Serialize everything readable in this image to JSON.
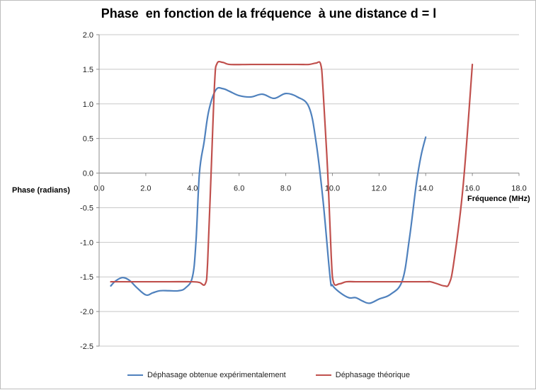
{
  "chart_data": {
    "type": "line",
    "title": "Phase  en fonction de la fréquence  à une distance d = l",
    "xlabel": "Fréquence (MHz)",
    "ylabel": "Phase (radians)",
    "xlim": [
      0,
      18
    ],
    "ylim": [
      -2.5,
      2.0
    ],
    "x_ticks": [
      "0.0",
      "2.0",
      "4.0",
      "6.0",
      "8.0",
      "10.0",
      "12.0",
      "14.0",
      "16.0",
      "18.0"
    ],
    "y_ticks": [
      "2.0",
      "1.5",
      "1.0",
      "0.5",
      "0.0",
      "-0.5",
      "-1.0",
      "-1.5",
      "-2.0",
      "-2.5"
    ],
    "grid": "horizontal",
    "legend_position": "bottom",
    "series": [
      {
        "name": "Déphasage obtenue expérimentalement",
        "color": "#4f81bd",
        "points": [
          [
            0.5,
            -1.63
          ],
          [
            0.7,
            -1.56
          ],
          [
            1.0,
            -1.51
          ],
          [
            1.3,
            -1.55
          ],
          [
            1.6,
            -1.65
          ],
          [
            2.0,
            -1.76
          ],
          [
            2.3,
            -1.73
          ],
          [
            2.6,
            -1.7
          ],
          [
            3.0,
            -1.7
          ],
          [
            3.4,
            -1.7
          ],
          [
            3.7,
            -1.66
          ],
          [
            4.0,
            -1.5
          ],
          [
            4.15,
            -1.0
          ],
          [
            4.3,
            0.0
          ],
          [
            4.5,
            0.45
          ],
          [
            4.7,
            0.9
          ],
          [
            5.0,
            1.2
          ],
          [
            5.3,
            1.22
          ],
          [
            5.6,
            1.18
          ],
          [
            6.0,
            1.12
          ],
          [
            6.5,
            1.1
          ],
          [
            7.0,
            1.14
          ],
          [
            7.5,
            1.08
          ],
          [
            8.0,
            1.15
          ],
          [
            8.5,
            1.1
          ],
          [
            9.0,
            0.95
          ],
          [
            9.3,
            0.45
          ],
          [
            9.6,
            -0.4
          ],
          [
            9.9,
            -1.5
          ],
          [
            10.0,
            -1.62
          ],
          [
            10.3,
            -1.72
          ],
          [
            10.7,
            -1.8
          ],
          [
            11.0,
            -1.8
          ],
          [
            11.3,
            -1.85
          ],
          [
            11.6,
            -1.88
          ],
          [
            12.0,
            -1.82
          ],
          [
            12.5,
            -1.75
          ],
          [
            13.0,
            -1.55
          ],
          [
            13.3,
            -0.95
          ],
          [
            13.6,
            -0.15
          ],
          [
            13.8,
            0.25
          ],
          [
            14.0,
            0.52
          ]
        ]
      },
      {
        "name": "Déphasage théorique",
        "color": "#c0504d",
        "points": [
          [
            0.5,
            -1.57
          ],
          [
            1.0,
            -1.57
          ],
          [
            2.0,
            -1.57
          ],
          [
            3.0,
            -1.57
          ],
          [
            4.0,
            -1.57
          ],
          [
            4.3,
            -1.58
          ],
          [
            4.55,
            -1.6
          ],
          [
            4.65,
            -1.3
          ],
          [
            4.8,
            0.0
          ],
          [
            4.95,
            1.3
          ],
          [
            5.05,
            1.58
          ],
          [
            5.3,
            1.6
          ],
          [
            5.6,
            1.57
          ],
          [
            6.5,
            1.57
          ],
          [
            7.5,
            1.57
          ],
          [
            8.5,
            1.57
          ],
          [
            9.0,
            1.57
          ],
          [
            9.3,
            1.59
          ],
          [
            9.5,
            1.57
          ],
          [
            9.6,
            1.2
          ],
          [
            9.8,
            0.0
          ],
          [
            9.95,
            -1.2
          ],
          [
            10.05,
            -1.58
          ],
          [
            10.3,
            -1.6
          ],
          [
            10.6,
            -1.57
          ],
          [
            11.0,
            -1.57
          ],
          [
            12.0,
            -1.57
          ],
          [
            13.0,
            -1.57
          ],
          [
            14.0,
            -1.57
          ],
          [
            14.2,
            -1.57
          ],
          [
            14.5,
            -1.6
          ],
          [
            14.8,
            -1.63
          ],
          [
            15.0,
            -1.6
          ],
          [
            15.2,
            -1.3
          ],
          [
            15.6,
            -0.2
          ],
          [
            16.0,
            1.57
          ]
        ]
      }
    ]
  }
}
